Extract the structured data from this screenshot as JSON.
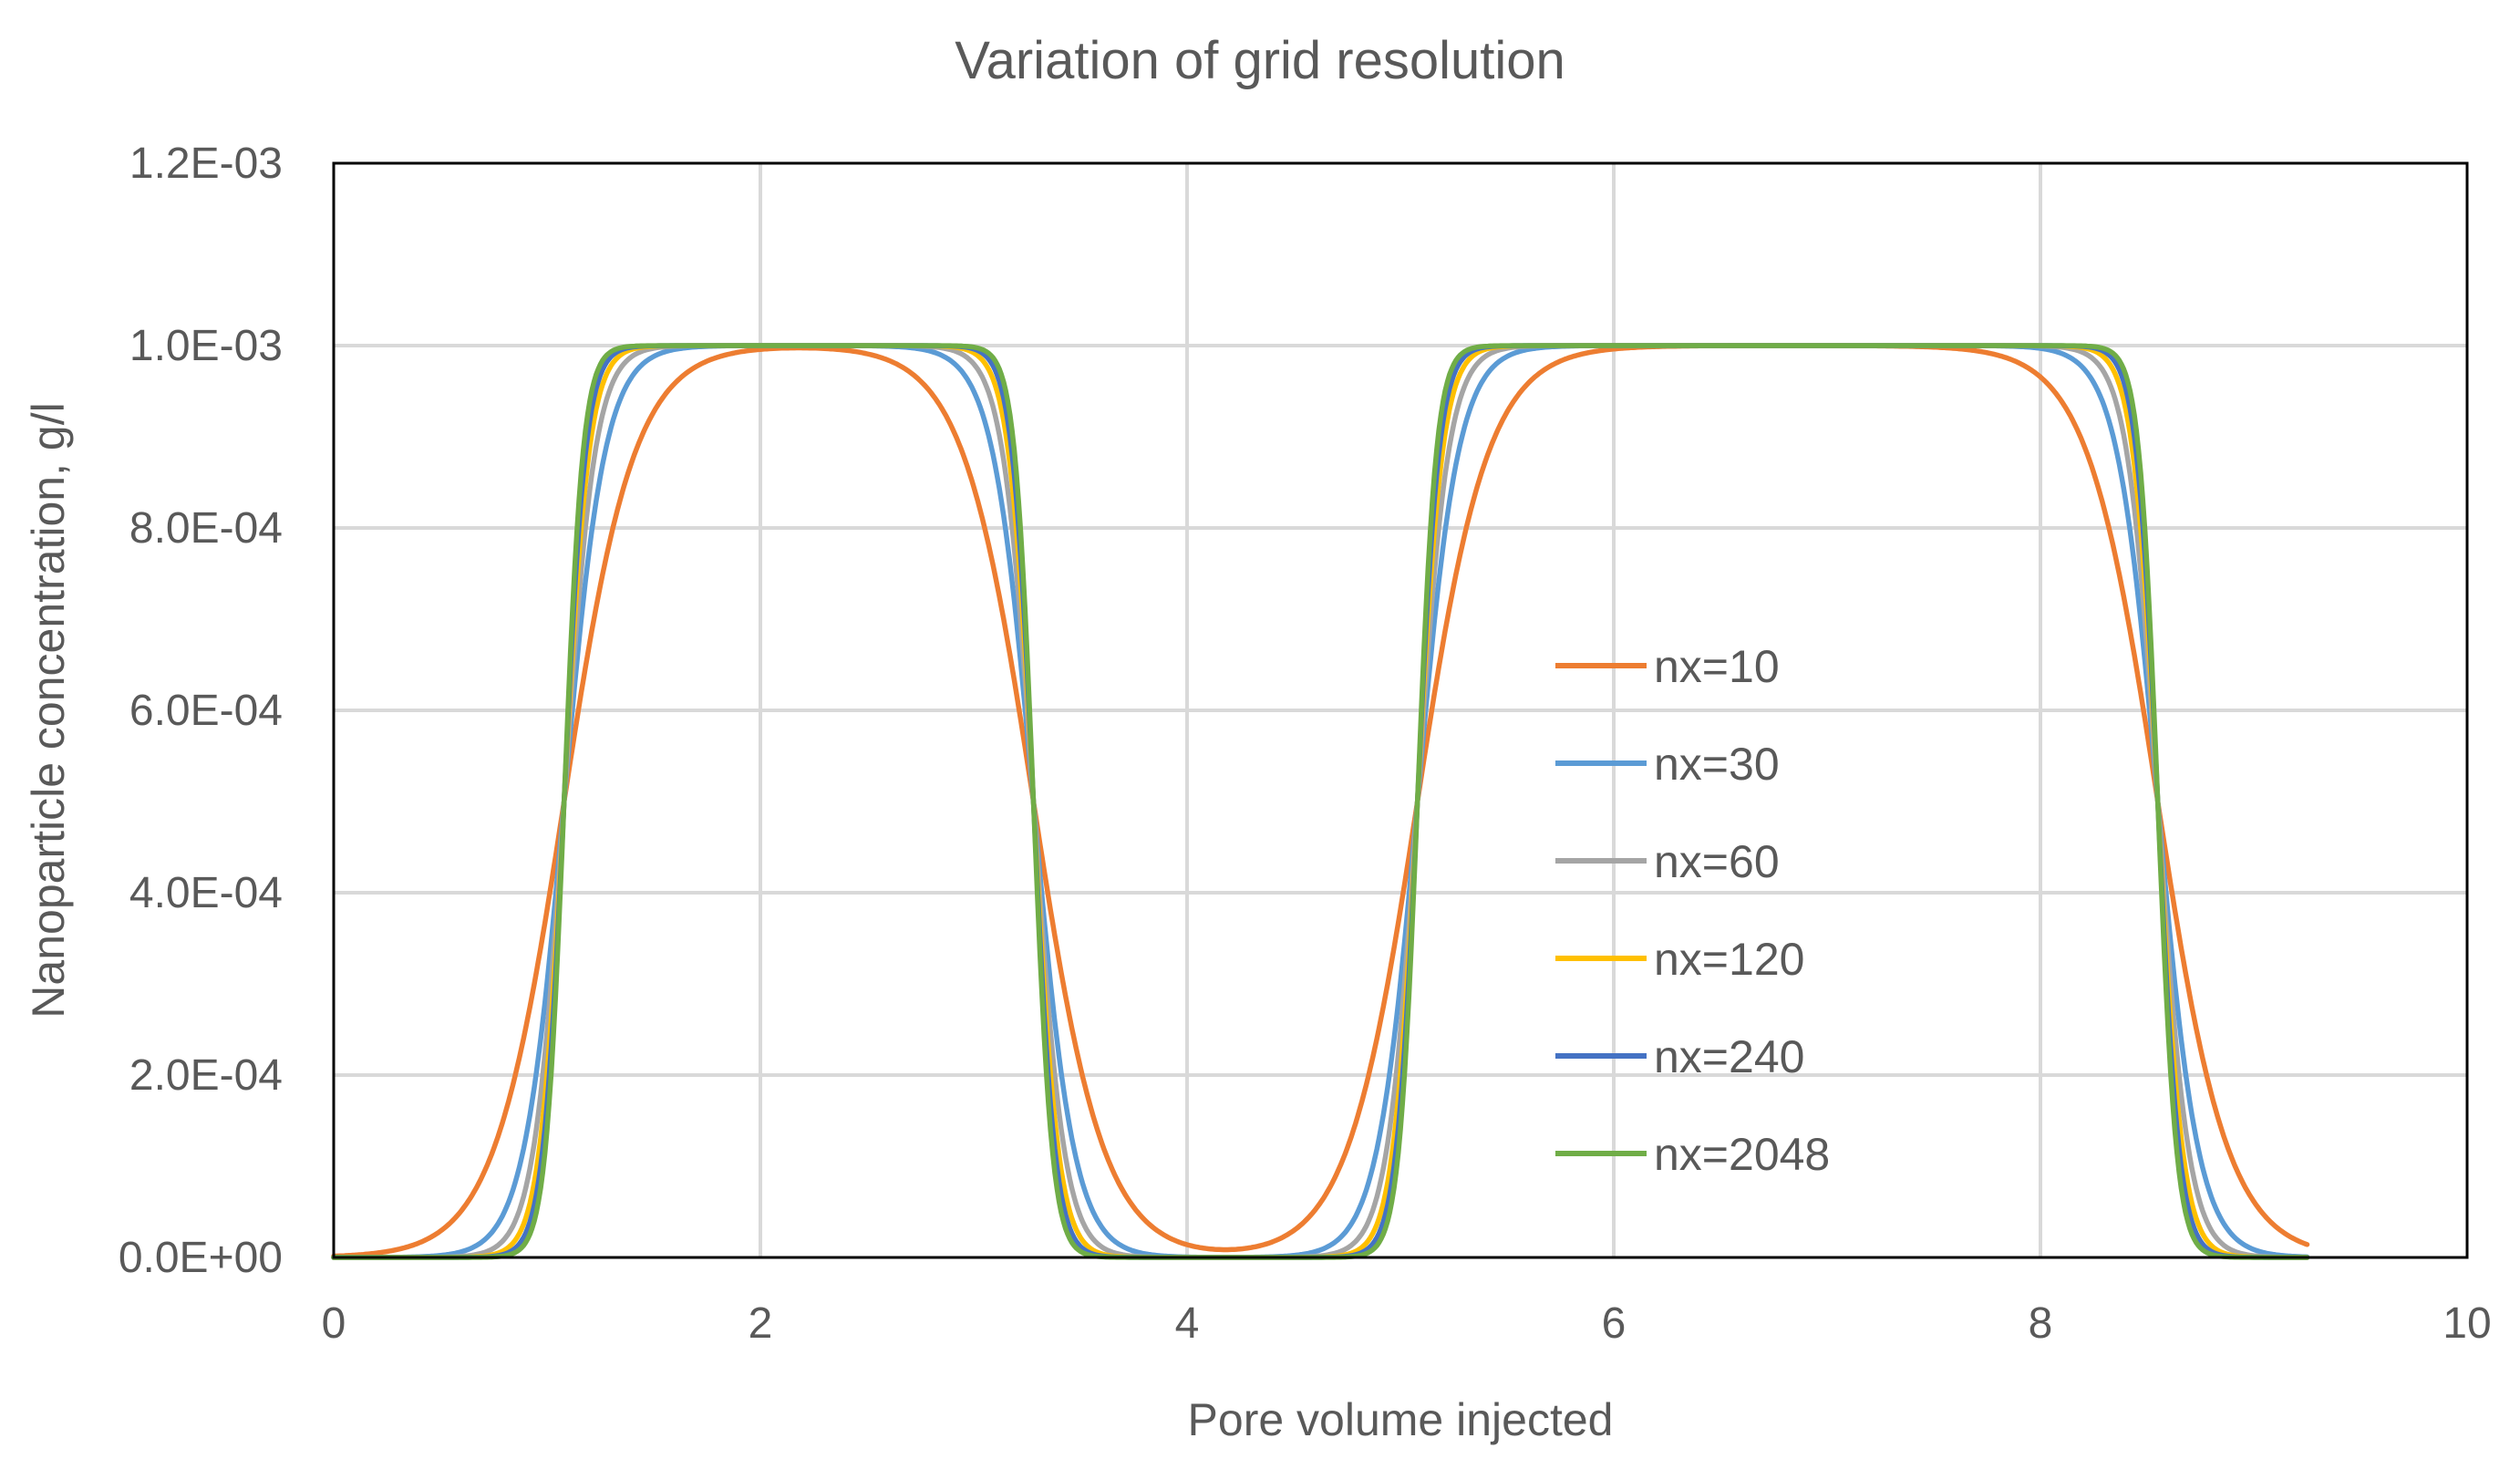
{
  "chart_data": {
    "type": "line",
    "title": "Variation of grid resolution",
    "xlabel": "Pore volume injected",
    "ylabel": "Nanoparticle concentration, g/l",
    "xlim": [
      0,
      10
    ],
    "ylim": [
      0,
      0.0012
    ],
    "x_ticks": [
      0,
      2,
      4,
      6,
      8,
      10
    ],
    "x_tick_labels": [
      "0",
      "2",
      "4",
      "6",
      "8",
      "10"
    ],
    "y_ticks": [
      0,
      0.0002,
      0.0004,
      0.0006,
      0.0008,
      0.001,
      0.0012
    ],
    "y_tick_labels": [
      "0.0E+00",
      "2.0E-04",
      "4.0E-04",
      "6.0E-04",
      "8.0E-04",
      "1.0E-03",
      "1.2E-03"
    ],
    "grid": true,
    "legend_position": "center-right",
    "x_range_data": [
      0,
      9.25
    ],
    "pulses": [
      {
        "rise_center": 1.08,
        "fall_center": 3.28
      },
      {
        "rise_center": 5.08,
        "fall_center": 8.55
      }
    ],
    "peak_concentration": 0.001,
    "series": [
      {
        "name": "nx=10",
        "color": "#ED7D31",
        "transition_width": 0.165
      },
      {
        "name": "nx=30",
        "color": "#5B9BD5",
        "transition_width": 0.095
      },
      {
        "name": "nx=60",
        "color": "#A5A5A5",
        "transition_width": 0.072
      },
      {
        "name": "nx=120",
        "color": "#FFC000",
        "transition_width": 0.058
      },
      {
        "name": "nx=240",
        "color": "#4472C4",
        "transition_width": 0.05
      },
      {
        "name": "nx=2048",
        "color": "#70AD47",
        "transition_width": 0.044
      }
    ]
  }
}
